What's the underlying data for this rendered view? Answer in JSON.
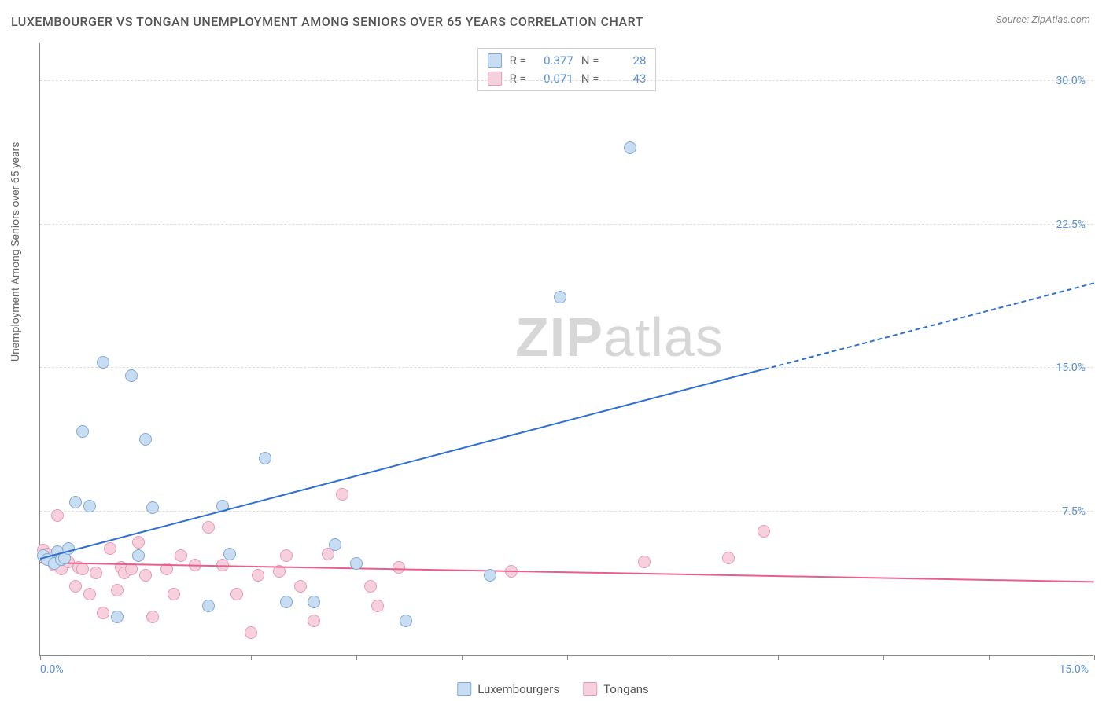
{
  "title": "LUXEMBOURGER VS TONGAN UNEMPLOYMENT AMONG SENIORS OVER 65 YEARS CORRELATION CHART",
  "source": "Source: ZipAtlas.com",
  "ylabel": "Unemployment Among Seniors over 65 years",
  "watermark_bold": "ZIP",
  "watermark_rest": "atlas",
  "chart": {
    "type": "scatter",
    "xlim": [
      0,
      15
    ],
    "ylim": [
      0,
      32
    ],
    "xticks": [
      0,
      1.5,
      3,
      4.5,
      6,
      7.5,
      9,
      10.5,
      12,
      13.5,
      15
    ],
    "yticks": [
      7.5,
      15.0,
      22.5,
      30.0
    ],
    "ytick_labels": [
      "7.5%",
      "15.0%",
      "22.5%",
      "30.0%"
    ],
    "xmin_label": "0.0%",
    "xmax_label": "15.0%",
    "background_color": "#ffffff",
    "grid_color": "#dddddd",
    "marker_radius": 8,
    "marker_border_width": 1.5,
    "trend_width": 2.5,
    "axis_label_color": "#5a8fd6",
    "series": [
      {
        "name": "Luxembourgers",
        "fill": "#c9ddf2",
        "stroke": "#7fa9d8",
        "trend_color": "#2e6fd1",
        "R": "0.377",
        "N": "28",
        "trend": {
          "x1": 0,
          "y1": 5.0,
          "x2": 10.3,
          "y2": 14.9,
          "ext_x2": 15.0,
          "ext_y2": 19.4
        },
        "points": [
          [
            0.05,
            5.2
          ],
          [
            0.1,
            5.0
          ],
          [
            0.2,
            4.8
          ],
          [
            0.25,
            5.4
          ],
          [
            0.3,
            5.0
          ],
          [
            0.35,
            5.1
          ],
          [
            0.4,
            5.6
          ],
          [
            0.5,
            8.0
          ],
          [
            0.6,
            11.7
          ],
          [
            0.7,
            7.8
          ],
          [
            0.9,
            15.3
          ],
          [
            1.1,
            2.0
          ],
          [
            1.3,
            14.6
          ],
          [
            1.4,
            5.2
          ],
          [
            1.5,
            11.3
          ],
          [
            1.6,
            7.7
          ],
          [
            2.4,
            2.6
          ],
          [
            2.6,
            7.8
          ],
          [
            2.7,
            5.3
          ],
          [
            3.2,
            10.3
          ],
          [
            3.5,
            2.8
          ],
          [
            3.9,
            2.8
          ],
          [
            4.2,
            5.8
          ],
          [
            4.5,
            4.8
          ],
          [
            5.2,
            1.8
          ],
          [
            6.4,
            4.2
          ],
          [
            7.4,
            18.7
          ],
          [
            8.4,
            26.5
          ]
        ]
      },
      {
        "name": "Tongans",
        "fill": "#f6d1dd",
        "stroke": "#e79ab3",
        "trend_color": "#e85f8d",
        "R": "-0.071",
        "N": "43",
        "trend": {
          "x1": 0,
          "y1": 4.8,
          "x2": 15.0,
          "y2": 3.8,
          "ext_x2": 15.0,
          "ext_y2": 3.8
        },
        "points": [
          [
            0.05,
            5.5
          ],
          [
            0.1,
            5.3
          ],
          [
            0.15,
            5.1
          ],
          [
            0.2,
            4.7
          ],
          [
            0.25,
            7.3
          ],
          [
            0.3,
            4.5
          ],
          [
            0.4,
            4.9
          ],
          [
            0.5,
            3.6
          ],
          [
            0.55,
            4.6
          ],
          [
            0.6,
            4.5
          ],
          [
            0.7,
            3.2
          ],
          [
            0.8,
            4.3
          ],
          [
            0.9,
            2.2
          ],
          [
            1.0,
            5.6
          ],
          [
            1.1,
            3.4
          ],
          [
            1.15,
            4.6
          ],
          [
            1.2,
            4.3
          ],
          [
            1.3,
            4.5
          ],
          [
            1.4,
            5.9
          ],
          [
            1.5,
            4.2
          ],
          [
            1.6,
            2.0
          ],
          [
            1.8,
            4.5
          ],
          [
            1.9,
            3.2
          ],
          [
            2.0,
            5.2
          ],
          [
            2.2,
            4.7
          ],
          [
            2.4,
            6.7
          ],
          [
            2.6,
            4.7
          ],
          [
            2.8,
            3.2
          ],
          [
            3.0,
            1.2
          ],
          [
            3.1,
            4.2
          ],
          [
            3.4,
            4.4
          ],
          [
            3.5,
            5.2
          ],
          [
            3.7,
            3.6
          ],
          [
            3.9,
            1.8
          ],
          [
            4.1,
            5.3
          ],
          [
            4.3,
            8.4
          ],
          [
            4.7,
            3.6
          ],
          [
            4.8,
            2.6
          ],
          [
            5.1,
            4.6
          ],
          [
            6.7,
            4.4
          ],
          [
            8.6,
            4.9
          ],
          [
            9.8,
            5.1
          ],
          [
            10.3,
            6.5
          ]
        ]
      }
    ]
  },
  "legend": {
    "series1": "Luxembourgers",
    "series2": "Tongans"
  },
  "stats_labels": {
    "R": "R =",
    "N": "N ="
  }
}
